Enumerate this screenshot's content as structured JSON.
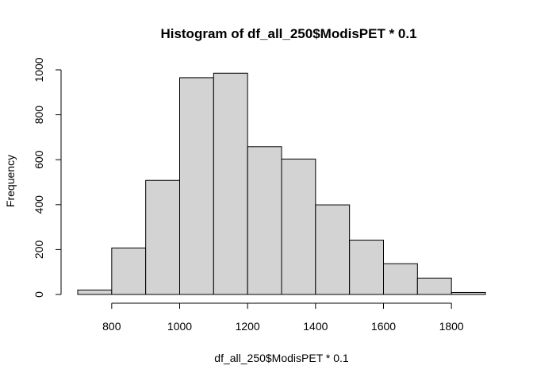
{
  "chart_data": {
    "type": "bar",
    "title": "Histogram of df_all_250$ModisPET * 0.1",
    "xlabel": "df_all_250$ModisPET * 0.1",
    "ylabel": "Frequency",
    "bins": [
      {
        "from": 700,
        "to": 800,
        "count": 20
      },
      {
        "from": 800,
        "to": 900,
        "count": 207
      },
      {
        "from": 900,
        "to": 1000,
        "count": 508
      },
      {
        "from": 1000,
        "to": 1100,
        "count": 965
      },
      {
        "from": 1100,
        "to": 1200,
        "count": 985
      },
      {
        "from": 1200,
        "to": 1300,
        "count": 658
      },
      {
        "from": 1300,
        "to": 1400,
        "count": 603
      },
      {
        "from": 1400,
        "to": 1500,
        "count": 399
      },
      {
        "from": 1500,
        "to": 1600,
        "count": 242
      },
      {
        "from": 1600,
        "to": 1700,
        "count": 137
      },
      {
        "from": 1700,
        "to": 1800,
        "count": 73
      },
      {
        "from": 1800,
        "to": 1900,
        "count": 9
      }
    ],
    "x_ticks": [
      800,
      1000,
      1200,
      1400,
      1600,
      1800
    ],
    "y_ticks": [
      0,
      200,
      400,
      600,
      800,
      1000
    ],
    "xlim": [
      700,
      1900
    ],
    "ylim": [
      0,
      1000
    ],
    "bar_color": "#d3d3d3",
    "edge_color": "#000000",
    "grid": false,
    "legend": "none"
  }
}
